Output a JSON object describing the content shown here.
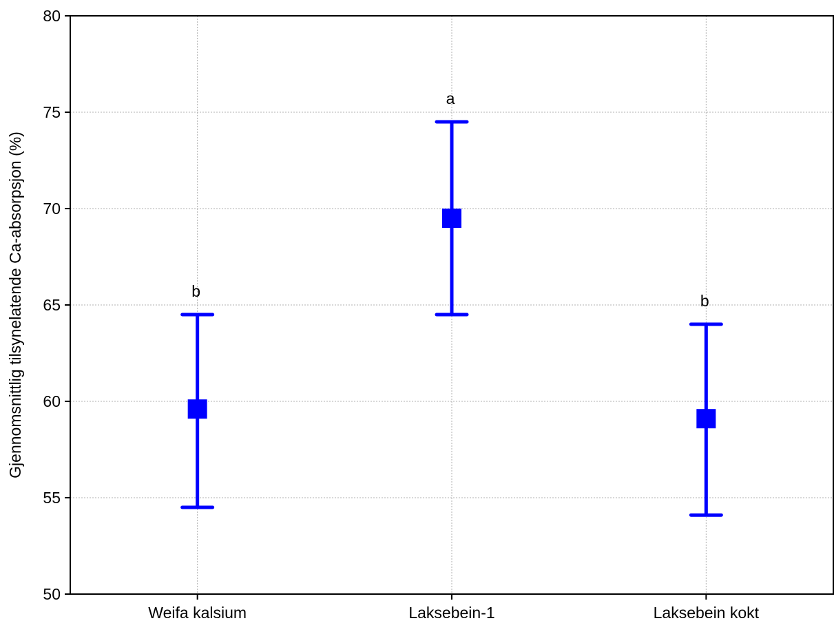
{
  "chart_data": {
    "type": "scatter",
    "title": "",
    "xlabel": "",
    "ylabel": "Gjennomsnittlig tilsynelatende Ca-absorpsjon (%)",
    "ylim": [
      50,
      80
    ],
    "yticks": [
      50,
      55,
      60,
      65,
      70,
      75,
      80
    ],
    "categories": [
      "Weifa kalsium",
      "Laksebein-1",
      "Laksebein kokt"
    ],
    "series": [
      {
        "values": [
          59.6,
          69.5,
          59.1
        ],
        "lower": [
          54.5,
          64.5,
          54.1
        ],
        "upper": [
          64.5,
          74.5,
          64.0
        ],
        "significance": [
          "b",
          "a",
          "b"
        ]
      }
    ],
    "grid": true,
    "colors": {
      "series": "#0000ff",
      "grid": "#b0b0b0",
      "axis": "#000000"
    }
  }
}
